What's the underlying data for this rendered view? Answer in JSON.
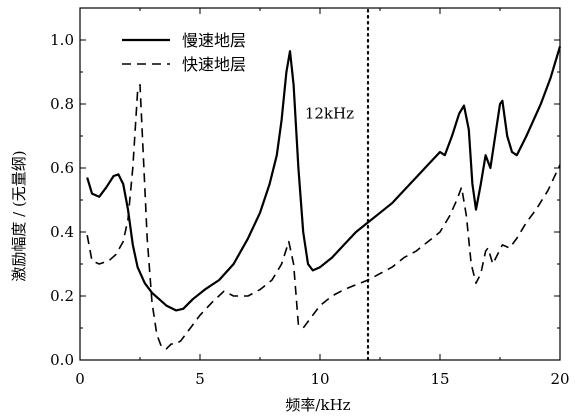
{
  "chart_data": {
    "type": "line",
    "xlabel": "频率/kHz",
    "ylabel": "激励幅度 / (无量纲)",
    "xlim": [
      0,
      20
    ],
    "ylim": [
      0,
      1.1
    ],
    "xticks": [
      0,
      5,
      10,
      15,
      20
    ],
    "xtick_labels": [
      "0",
      "5",
      "10",
      "15",
      "20"
    ],
    "yticks": [
      0.0,
      0.2,
      0.4,
      0.6,
      0.8,
      1.0
    ],
    "ytick_labels": [
      "0.0",
      "0.2",
      "0.4",
      "0.6",
      "0.8",
      "1.0"
    ],
    "grid": false,
    "legend": "top-left",
    "annotation": {
      "text": "12kHz",
      "x": 12
    },
    "series": [
      {
        "name": "慢速地层",
        "style": "solid",
        "color": "#000000",
        "points": [
          [
            0.3,
            0.57
          ],
          [
            0.5,
            0.52
          ],
          [
            0.8,
            0.51
          ],
          [
            1.1,
            0.54
          ],
          [
            1.4,
            0.575
          ],
          [
            1.6,
            0.58
          ],
          [
            1.8,
            0.55
          ],
          [
            2.0,
            0.47
          ],
          [
            2.2,
            0.36
          ],
          [
            2.4,
            0.29
          ],
          [
            2.7,
            0.24
          ],
          [
            3.0,
            0.21
          ],
          [
            3.3,
            0.19
          ],
          [
            3.6,
            0.17
          ],
          [
            4.0,
            0.155
          ],
          [
            4.3,
            0.16
          ],
          [
            4.7,
            0.19
          ],
          [
            5.2,
            0.22
          ],
          [
            5.8,
            0.25
          ],
          [
            6.4,
            0.3
          ],
          [
            7.0,
            0.38
          ],
          [
            7.5,
            0.46
          ],
          [
            7.9,
            0.55
          ],
          [
            8.2,
            0.64
          ],
          [
            8.4,
            0.75
          ],
          [
            8.6,
            0.9
          ],
          [
            8.75,
            0.965
          ],
          [
            8.9,
            0.86
          ],
          [
            9.1,
            0.6
          ],
          [
            9.3,
            0.4
          ],
          [
            9.5,
            0.3
          ],
          [
            9.7,
            0.28
          ],
          [
            10.0,
            0.29
          ],
          [
            10.5,
            0.32
          ],
          [
            11.0,
            0.36
          ],
          [
            11.5,
            0.4
          ],
          [
            12.0,
            0.43
          ],
          [
            12.5,
            0.46
          ],
          [
            13.0,
            0.49
          ],
          [
            13.5,
            0.53
          ],
          [
            14.0,
            0.57
          ],
          [
            14.5,
            0.61
          ],
          [
            15.0,
            0.65
          ],
          [
            15.2,
            0.64
          ],
          [
            15.5,
            0.7
          ],
          [
            15.8,
            0.77
          ],
          [
            16.0,
            0.795
          ],
          [
            16.2,
            0.72
          ],
          [
            16.35,
            0.55
          ],
          [
            16.5,
            0.47
          ],
          [
            16.7,
            0.55
          ],
          [
            16.9,
            0.64
          ],
          [
            17.1,
            0.6
          ],
          [
            17.3,
            0.7
          ],
          [
            17.5,
            0.8
          ],
          [
            17.6,
            0.81
          ],
          [
            17.8,
            0.7
          ],
          [
            18.0,
            0.65
          ],
          [
            18.2,
            0.64
          ],
          [
            18.6,
            0.7
          ],
          [
            19.2,
            0.8
          ],
          [
            19.6,
            0.88
          ],
          [
            20.0,
            0.98
          ]
        ]
      },
      {
        "name": "快速地层",
        "style": "dashed",
        "color": "#000000",
        "points": [
          [
            0.3,
            0.39
          ],
          [
            0.5,
            0.31
          ],
          [
            0.8,
            0.3
          ],
          [
            1.2,
            0.31
          ],
          [
            1.5,
            0.33
          ],
          [
            1.8,
            0.37
          ],
          [
            2.0,
            0.44
          ],
          [
            2.2,
            0.6
          ],
          [
            2.4,
            0.84
          ],
          [
            2.5,
            0.86
          ],
          [
            2.6,
            0.7
          ],
          [
            2.8,
            0.38
          ],
          [
            3.0,
            0.18
          ],
          [
            3.2,
            0.08
          ],
          [
            3.4,
            0.04
          ],
          [
            3.6,
            0.035
          ],
          [
            3.8,
            0.05
          ],
          [
            4.0,
            0.05
          ],
          [
            4.2,
            0.06
          ],
          [
            4.5,
            0.09
          ],
          [
            5.0,
            0.14
          ],
          [
            5.5,
            0.18
          ],
          [
            6.0,
            0.215
          ],
          [
            6.4,
            0.2
          ],
          [
            7.0,
            0.2
          ],
          [
            7.5,
            0.22
          ],
          [
            8.0,
            0.25
          ],
          [
            8.4,
            0.3
          ],
          [
            8.7,
            0.37
          ],
          [
            8.9,
            0.3
          ],
          [
            9.1,
            0.11
          ],
          [
            9.3,
            0.1
          ],
          [
            9.6,
            0.13
          ],
          [
            10.0,
            0.17
          ],
          [
            10.5,
            0.2
          ],
          [
            11.0,
            0.22
          ],
          [
            11.5,
            0.235
          ],
          [
            12.0,
            0.25
          ],
          [
            12.5,
            0.27
          ],
          [
            13.0,
            0.29
          ],
          [
            13.5,
            0.32
          ],
          [
            14.0,
            0.34
          ],
          [
            14.5,
            0.37
          ],
          [
            15.0,
            0.4
          ],
          [
            15.4,
            0.45
          ],
          [
            15.7,
            0.5
          ],
          [
            15.9,
            0.54
          ],
          [
            16.1,
            0.45
          ],
          [
            16.3,
            0.3
          ],
          [
            16.5,
            0.24
          ],
          [
            16.7,
            0.27
          ],
          [
            16.9,
            0.34
          ],
          [
            17.0,
            0.35
          ],
          [
            17.2,
            0.3
          ],
          [
            17.4,
            0.33
          ],
          [
            17.6,
            0.36
          ],
          [
            17.9,
            0.35
          ],
          [
            18.2,
            0.38
          ],
          [
            18.6,
            0.43
          ],
          [
            19.0,
            0.47
          ],
          [
            19.5,
            0.53
          ],
          [
            20.0,
            0.61
          ]
        ]
      }
    ]
  }
}
